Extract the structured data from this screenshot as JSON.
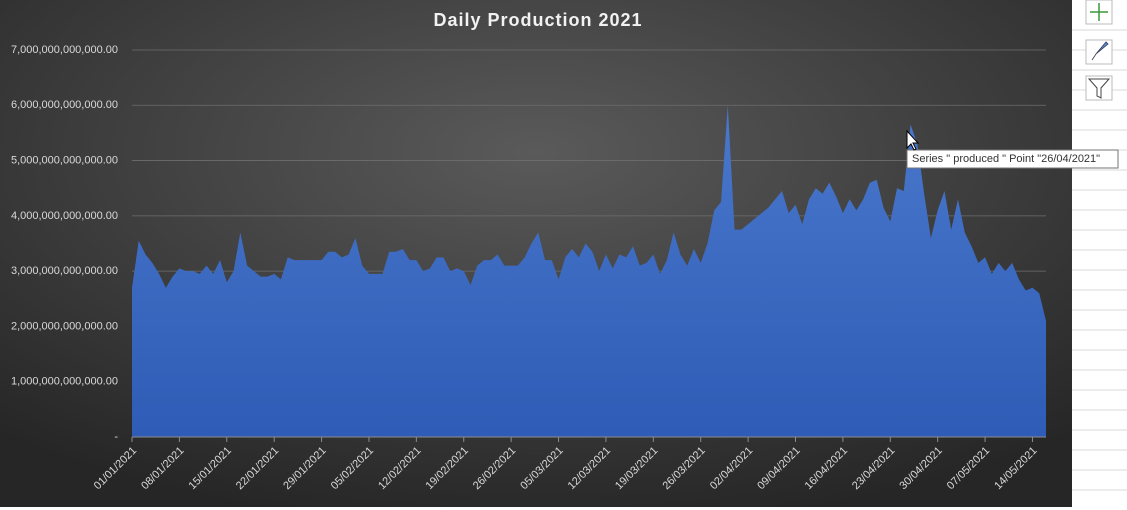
{
  "chart_data": {
    "type": "area",
    "title": "Daily Production 2021",
    "categories": [
      "01/01/2021",
      null,
      null,
      null,
      null,
      null,
      null,
      "08/01/2021",
      null,
      null,
      null,
      null,
      null,
      null,
      "15/01/2021",
      null,
      null,
      null,
      null,
      null,
      null,
      "22/01/2021",
      null,
      null,
      null,
      null,
      null,
      null,
      "29/01/2021",
      null,
      null,
      null,
      null,
      null,
      null,
      "05/02/2021",
      null,
      null,
      null,
      null,
      null,
      null,
      "12/02/2021",
      null,
      null,
      null,
      null,
      null,
      null,
      "19/02/2021",
      null,
      null,
      null,
      null,
      null,
      null,
      "26/02/2021",
      null,
      null,
      null,
      null,
      null,
      null,
      "05/03/2021",
      null,
      null,
      null,
      null,
      null,
      null,
      "12/03/2021",
      null,
      null,
      null,
      null,
      null,
      null,
      "19/03/2021",
      null,
      null,
      null,
      null,
      null,
      null,
      "26/03/2021",
      null,
      null,
      null,
      null,
      null,
      null,
      "02/04/2021",
      null,
      null,
      null,
      null,
      null,
      null,
      "09/04/2021",
      null,
      null,
      null,
      null,
      null,
      null,
      "16/04/2021",
      null,
      null,
      null,
      null,
      null,
      null,
      "23/04/2021",
      null,
      null,
      null,
      null,
      null,
      null,
      "30/04/2021",
      null,
      null,
      null,
      null,
      null,
      null,
      "07/05/2021",
      null,
      null,
      null,
      null,
      null,
      null,
      "14/05/2021",
      null,
      null
    ],
    "values": [
      2700000000000.0,
      3550000000000.0,
      3300000000000.0,
      3150000000000.0,
      2950000000000.0,
      2700000000000.0,
      2900000000000.0,
      3050000000000.0,
      3000000000000.0,
      3000000000000.0,
      2950000000000.0,
      3100000000000.0,
      2950000000000.0,
      3200000000000.0,
      2800000000000.0,
      3000000000000.0,
      3700000000000.0,
      3100000000000.0,
      3000000000000.0,
      2900000000000.0,
      2900000000000.0,
      2950000000000.0,
      2850000000000.0,
      3250000000000.0,
      3200000000000.0,
      3200000000000.0,
      3200000000000.0,
      3200000000000.0,
      3200000000000.0,
      3350000000000.0,
      3350000000000.0,
      3250000000000.0,
      3300000000000.0,
      3600000000000.0,
      3100000000000.0,
      2950000000000.0,
      2950000000000.0,
      2950000000000.0,
      3350000000000.0,
      3350000000000.0,
      3400000000000.0,
      3200000000000.0,
      3200000000000.0,
      3000000000000.0,
      3050000000000.0,
      3250000000000.0,
      3250000000000.0,
      3000000000000.0,
      3050000000000.0,
      3000000000000.0,
      2750000000000.0,
      3100000000000.0,
      3200000000000.0,
      3200000000000.0,
      3300000000000.0,
      3100000000000.0,
      3100000000000.0,
      3100000000000.0,
      3250000000000.0,
      3500000000000.0,
      3700000000000.0,
      3200000000000.0,
      3200000000000.0,
      2850000000000.0,
      3250000000000.0,
      3400000000000.0,
      3250000000000.0,
      3500000000000.0,
      3350000000000.0,
      3000000000000.0,
      3300000000000.0,
      3050000000000.0,
      3300000000000.0,
      3250000000000.0,
      3450000000000.0,
      3100000000000.0,
      3150000000000.0,
      3300000000000.0,
      2950000000000.0,
      3200000000000.0,
      3700000000000.0,
      3300000000000.0,
      3100000000000.0,
      3400000000000.0,
      3150000000000.0,
      3500000000000.0,
      4100000000000.0,
      4250000000000.0,
      6000000000000.0,
      3750000000000.0,
      3750000000000.0,
      3850000000000.0,
      3950000000000.0,
      4050000000000.0,
      4150000000000.0,
      4300000000000.0,
      4450000000000.0,
      4050000000000.0,
      4200000000000.0,
      3850000000000.0,
      4300000000000.0,
      4500000000000.0,
      4400000000000.0,
      4600000000000.0,
      4350000000000.0,
      4050000000000.0,
      4300000000000.0,
      4100000000000.0,
      4300000000000.0,
      4600000000000.0,
      4650000000000.0,
      4150000000000.0,
      3900000000000.0,
      4500000000000.0,
      4450000000000.0,
      5650000000000.0,
      5300000000000.0,
      4400000000000.0,
      3600000000000.0,
      4100000000000.0,
      4450000000000.0,
      3750000000000.0,
      4300000000000.0,
      3700000000000.0,
      3450000000000.0,
      3150000000000.0,
      3250000000000.0,
      2950000000000.0,
      3150000000000.0,
      3000000000000.0,
      3150000000000.0,
      2850000000000.0,
      2650000000000.0,
      2700000000000.0,
      2600000000000.0,
      2100000000000.0
    ],
    "color": "#4472c4",
    "ylim": [
      0,
      7000000000000
    ],
    "yticks": [
      {
        "value": 0,
        "label": "-"
      },
      {
        "value": 1000000000000,
        "label": "1,000,000,000,000.00"
      },
      {
        "value": 2000000000000,
        "label": "2,000,000,000,000.00"
      },
      {
        "value": 3000000000000,
        "label": "3,000,000,000,000.00"
      },
      {
        "value": 4000000000000,
        "label": "4,000,000,000,000.00"
      },
      {
        "value": 5000000000000,
        "label": "5,000,000,000,000.00"
      },
      {
        "value": 6000000000000,
        "label": "6,000,000,000,000.00"
      },
      {
        "value": 7000000000000,
        "label": "7,000,000,000,000.00"
      }
    ],
    "grid": true,
    "tooltip": "Series \" produced \" Point \"26/04/2021\""
  }
}
